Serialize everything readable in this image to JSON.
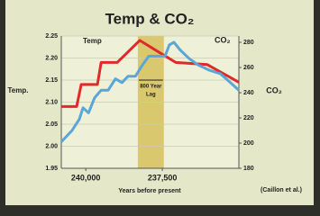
{
  "chart_data": {
    "type": "line",
    "title": "Temp & CO₂",
    "x_label": "Years before present",
    "y_label": "Temp.",
    "y2_label": "CO₂",
    "source": "(Caillon et al.)",
    "lag_label": [
      "800 Year",
      "Lag"
    ],
    "lag_band": [
      238300,
      237450
    ],
    "lag_color": "#d9c86e",
    "xlim": [
      240800,
      235000
    ],
    "xticks": [
      {
        "value": 240000,
        "label": "240,000"
      },
      {
        "value": 237500,
        "label": "237,500"
      }
    ],
    "ylim": [
      1.95,
      2.25
    ],
    "yticks": [
      1.95,
      {
        "value": 2.0,
        "label": "2.00"
      },
      2.05,
      {
        "value": 2.1,
        "label": "2.10"
      },
      2.15,
      {
        "value": 2.2,
        "label": "2.20"
      },
      2.25
    ],
    "y2lim": [
      180,
      285
    ],
    "y2ticks": [
      180,
      200,
      220,
      240,
      260,
      280
    ],
    "grid": true,
    "series": [
      {
        "name": "Temp",
        "color": "#e02a2a",
        "x": [
          240800,
          240300,
          240150,
          239620,
          239500,
          238975,
          238240,
          237650,
          237060,
          236030,
          235000
        ],
        "values": [
          2.09,
          2.09,
          2.14,
          2.14,
          2.19,
          2.19,
          2.24,
          2.215,
          2.19,
          2.185,
          2.145
        ]
      },
      {
        "name": "CO₂",
        "color": "#5aa6d6",
        "axis": "y2",
        "x": [
          240800,
          240450,
          240210,
          240090,
          239910,
          239710,
          239500,
          239270,
          239030,
          238820,
          238620,
          238380,
          238150,
          237940,
          237650,
          237410,
          237270,
          237120,
          236920,
          236620,
          236330,
          235980,
          235600,
          235000
        ],
        "values": [
          201,
          210,
          219,
          228,
          224,
          236,
          242,
          242,
          251,
          248,
          253,
          253,
          262,
          269,
          269,
          269,
          278,
          280,
          274,
          267,
          262,
          258,
          255,
          242
        ]
      }
    ]
  }
}
